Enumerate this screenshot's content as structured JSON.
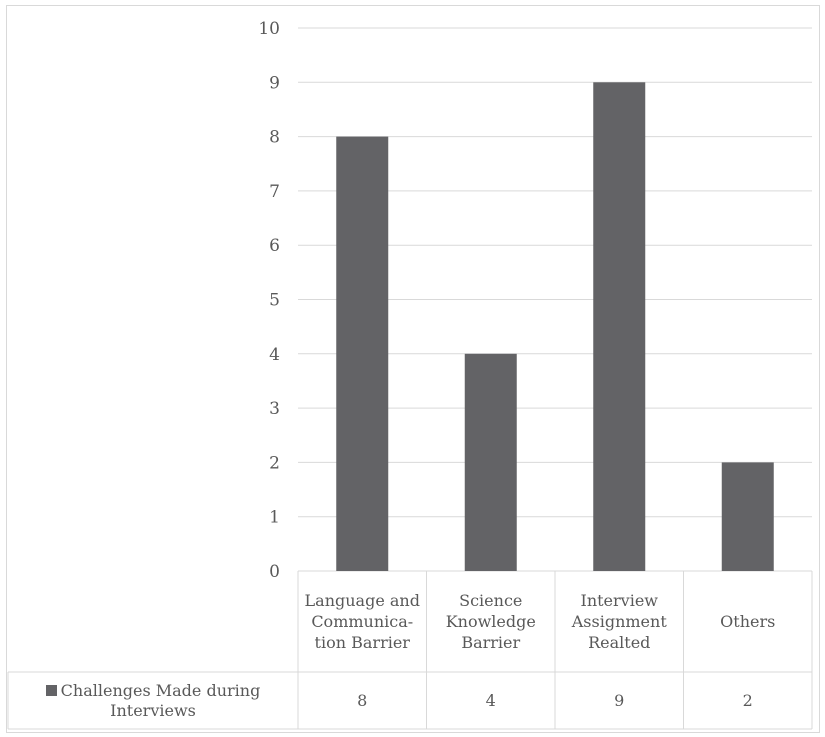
{
  "chart_data": {
    "type": "bar",
    "categories": [
      "Language and Communica- tion Barrier",
      "Science Knowledge Barrier",
      "Interview Assignment Realted",
      "Others"
    ],
    "series": [
      {
        "name": "Challenges Made during Interviews",
        "values": [
          8,
          4,
          9,
          2
        ]
      }
    ],
    "ylim": [
      0,
      10
    ],
    "yticks": [
      "0",
      "1",
      "2",
      "3",
      "4",
      "5",
      "6",
      "7",
      "8",
      "9",
      "10"
    ],
    "grid": true,
    "data_table": true,
    "colors": {
      "bar": "#636366",
      "grid": "#d9d9d9",
      "text": "#595959"
    }
  }
}
